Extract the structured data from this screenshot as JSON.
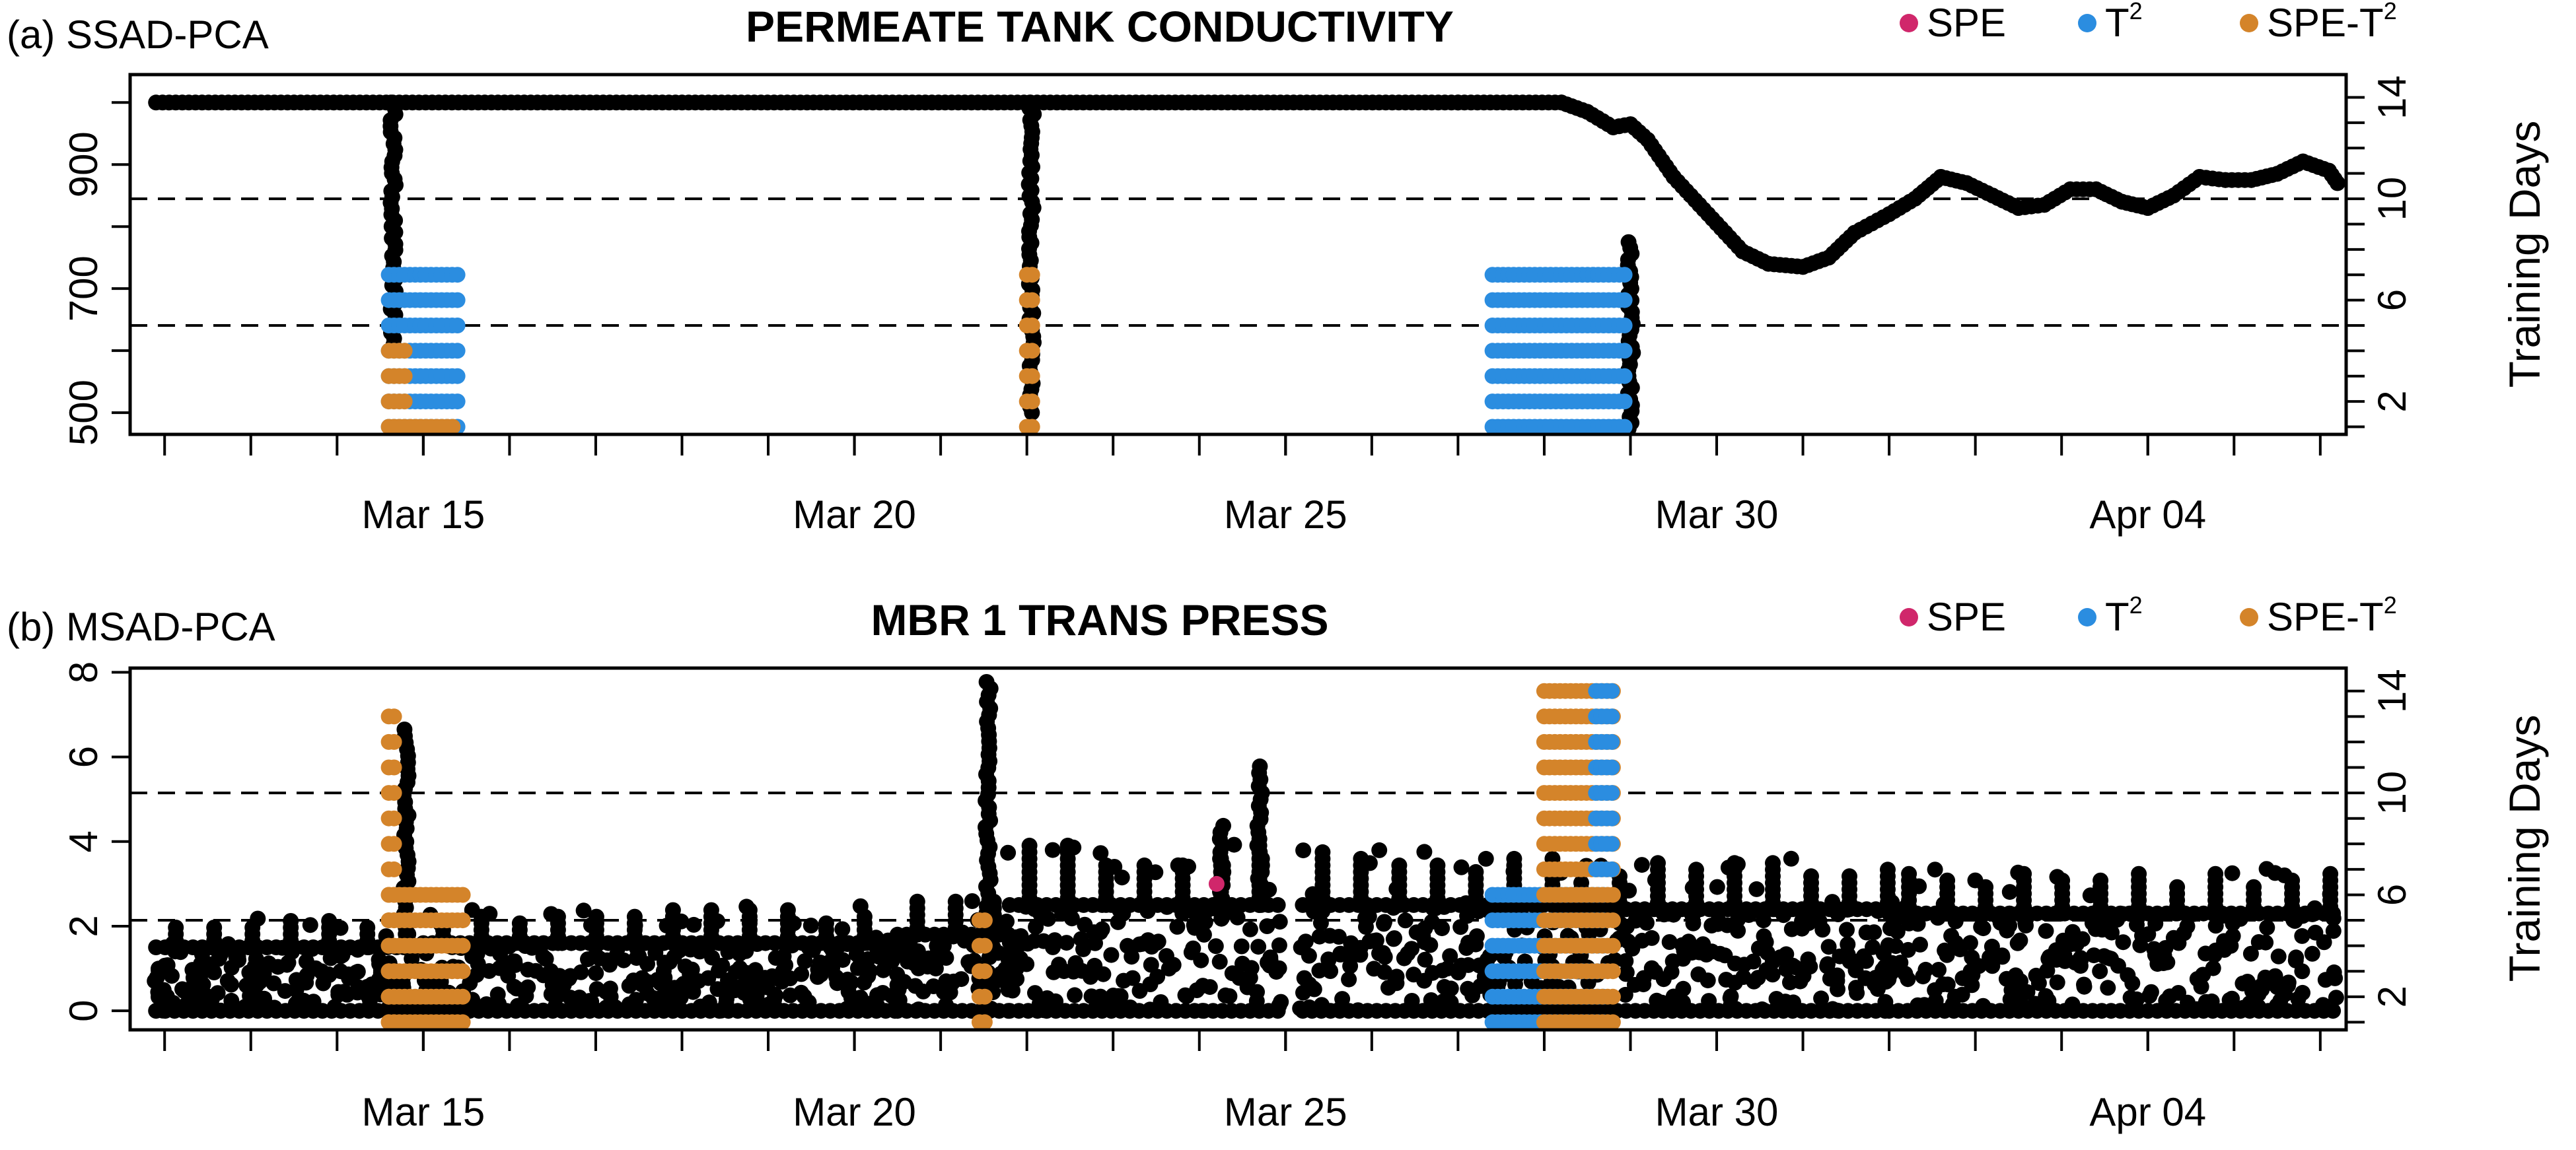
{
  "colors": {
    "spe": "#d0276b",
    "t2": "#2b8de0",
    "spe_t2": "#d4842a",
    "data": "#000000"
  },
  "chart_data": [
    {
      "type": "scatter",
      "panel_label": "(a) SSAD-PCA",
      "title": "PERMEATE TANK CONDUCTIVITY",
      "xlabel": "",
      "ylabel": "",
      "y2label": "Training Days",
      "x_tick_labels": [
        "Mar 15",
        "Mar 20",
        "Mar 25",
        "Mar 30",
        "Apr 04"
      ],
      "x_ticks_days": [
        15,
        20,
        25,
        30,
        35
      ],
      "xlim_days": [
        11.6,
        37.3
      ],
      "yticks": [
        500,
        700,
        900
      ],
      "ylim": [
        465,
        1045
      ],
      "y2ticks": [
        2,
        6,
        10,
        14
      ],
      "y2lim": [
        0.7,
        14.9
      ],
      "hlines_y2": [
        5,
        10
      ],
      "legend": [
        {
          "key": "spe",
          "label": "SPE"
        },
        {
          "key": "t2",
          "label": "T",
          "sup": "2"
        },
        {
          "key": "spe_t2",
          "label": "SPE-T",
          "sup": "2"
        }
      ],
      "legend_position": "top-right",
      "series": {
        "main_line": [
          [
            11.9,
            1000
          ],
          [
            27.0,
            1000
          ],
          [
            28.2,
            1000
          ],
          [
            28.5,
            985
          ],
          [
            28.8,
            960
          ],
          [
            29.0,
            965
          ],
          [
            29.2,
            940
          ],
          [
            29.5,
            880
          ],
          [
            29.8,
            835
          ],
          [
            30.1,
            790
          ],
          [
            30.3,
            760
          ],
          [
            30.6,
            740
          ],
          [
            31.0,
            735
          ],
          [
            31.3,
            750
          ],
          [
            31.6,
            790
          ],
          [
            32.0,
            820
          ],
          [
            32.3,
            845
          ],
          [
            32.6,
            880
          ],
          [
            32.9,
            870
          ],
          [
            33.2,
            850
          ],
          [
            33.5,
            830
          ],
          [
            33.8,
            835
          ],
          [
            34.1,
            860
          ],
          [
            34.4,
            860
          ],
          [
            34.7,
            840
          ],
          [
            35.0,
            830
          ],
          [
            35.3,
            850
          ],
          [
            35.6,
            880
          ],
          [
            35.9,
            875
          ],
          [
            36.2,
            875
          ],
          [
            36.5,
            885
          ],
          [
            36.8,
            905
          ],
          [
            37.1,
            890
          ],
          [
            37.2,
            870
          ]
        ],
        "main_line_end_day": 37.2,
        "vertical_spikes": [
          {
            "x_day": 14.65,
            "y_from": 1000,
            "y_to": 610
          },
          {
            "x_day": 22.05,
            "y_from": 1000,
            "y_to": 500
          },
          {
            "x_day": 29.0,
            "y_from": 775,
            "y_to": 465
          }
        ],
        "alarm_columns": [
          {
            "x_from_day": 14.6,
            "x_to_day": 15.45,
            "y2_levels": [
              1,
              2,
              3,
              4,
              5,
              6,
              7
            ],
            "key": "t2"
          },
          {
            "x_from_day": 14.6,
            "x_to_day": 14.82,
            "y2_levels": [
              1,
              2,
              3,
              4
            ],
            "key": "spe_t2"
          },
          {
            "x_from_day": 14.85,
            "x_to_day": 15.35,
            "y2_levels": [
              1
            ],
            "key": "spe_t2"
          },
          {
            "x_from_day": 22.0,
            "x_to_day": 22.12,
            "y2_levels": [
              1,
              2,
              3,
              4,
              5,
              6,
              7
            ],
            "key": "spe_t2"
          },
          {
            "x_from_day": 27.4,
            "x_to_day": 28.95,
            "y2_levels": [
              1,
              2,
              3,
              4,
              5,
              6,
              7
            ],
            "key": "t2"
          }
        ]
      }
    },
    {
      "type": "scatter",
      "panel_label": "(b) MSAD-PCA",
      "title": "MBR 1 TRANS PRESS",
      "xlabel": "",
      "ylabel": "",
      "y2label": "Training Days",
      "x_tick_labels": [
        "Mar 15",
        "Mar 20",
        "Mar 25",
        "Mar 30",
        "Apr 04"
      ],
      "x_ticks_days": [
        15,
        20,
        25,
        30,
        35
      ],
      "xlim_days": [
        11.6,
        37.3
      ],
      "yticks": [
        0,
        2,
        4,
        6,
        8
      ],
      "ylim": [
        -0.45,
        8.1
      ],
      "y2ticks": [
        2,
        6,
        10,
        14
      ],
      "y2lim": [
        0.7,
        14.9
      ],
      "hlines_y2": [
        5,
        10
      ],
      "legend": [
        {
          "key": "spe",
          "label": "SPE"
        },
        {
          "key": "t2",
          "label": "T",
          "sup": "2"
        },
        {
          "key": "spe_t2",
          "label": "SPE-T",
          "sup": "2"
        }
      ],
      "legend_position": "top-right",
      "series": {
        "segments": [
          {
            "x_from_day": 11.9,
            "x_to_day": 15.0,
            "base": 1.5,
            "spread_lo": 0.0,
            "spread_hi": 2.3
          },
          {
            "x_from_day": 15.0,
            "x_to_day": 20.5,
            "base": 1.6,
            "spread_lo": 0.0,
            "spread_hi": 2.5
          },
          {
            "x_from_day": 20.5,
            "x_to_day": 21.8,
            "base": 1.8,
            "spread_lo": 0.0,
            "spread_hi": 2.8
          },
          {
            "x_from_day": 21.8,
            "x_to_day": 25.0,
            "base": 2.5,
            "spread_lo": 0.0,
            "spread_hi": 4.0
          },
          {
            "x_from_day": 25.2,
            "x_to_day": 28.2,
            "base": 2.5,
            "spread_lo": 0.0,
            "spread_hi": 3.8
          },
          {
            "x_from_day": 28.2,
            "x_to_day": 32.0,
            "base": 2.4,
            "spread_lo": 0.0,
            "spread_hi": 3.6
          },
          {
            "x_from_day": 32.0,
            "x_to_day": 37.2,
            "base": 2.3,
            "spread_lo": 0.0,
            "spread_hi": 3.4
          }
        ],
        "spikes": [
          {
            "x_day": 14.8,
            "y_from": 1.5,
            "y_to": 6.7
          },
          {
            "x_day": 21.55,
            "y_from": 2.0,
            "y_to": 7.8
          },
          {
            "x_day": 24.25,
            "y_from": 2.5,
            "y_to": 4.4
          },
          {
            "x_day": 24.7,
            "y_from": 2.5,
            "y_to": 5.8
          }
        ],
        "alarm_columns": [
          {
            "x_from_day": 14.6,
            "x_to_day": 14.72,
            "y2_levels": [
              1,
              2,
              3,
              4,
              5,
              6,
              7,
              8,
              9,
              10,
              11,
              12,
              13
            ],
            "key": "spe_t2"
          },
          {
            "x_from_day": 14.6,
            "x_to_day": 15.5,
            "y2_levels": [
              1,
              2,
              3,
              4,
              5,
              6
            ],
            "key": "spe_t2"
          },
          {
            "x_from_day": 21.45,
            "x_to_day": 21.55,
            "y2_levels": [
              1,
              2,
              3,
              4,
              5
            ],
            "key": "spe_t2"
          },
          {
            "x_from_day": 27.4,
            "x_to_day": 28.7,
            "y2_levels": [
              1,
              2,
              3,
              4,
              5,
              6
            ],
            "key": "t2"
          },
          {
            "x_from_day": 28.0,
            "x_to_day": 28.8,
            "y2_levels": [
              1,
              2,
              3,
              4,
              5,
              6,
              7,
              8,
              9,
              10,
              11,
              12,
              13,
              14
            ],
            "key": "spe_t2"
          },
          {
            "x_from_day": 28.6,
            "x_to_day": 28.8,
            "y2_levels": [
              7,
              8,
              9,
              10,
              11,
              12,
              13,
              14
            ],
            "key": "t2"
          }
        ],
        "spe_points": [
          [
            24.2,
            3.0
          ]
        ]
      }
    }
  ]
}
